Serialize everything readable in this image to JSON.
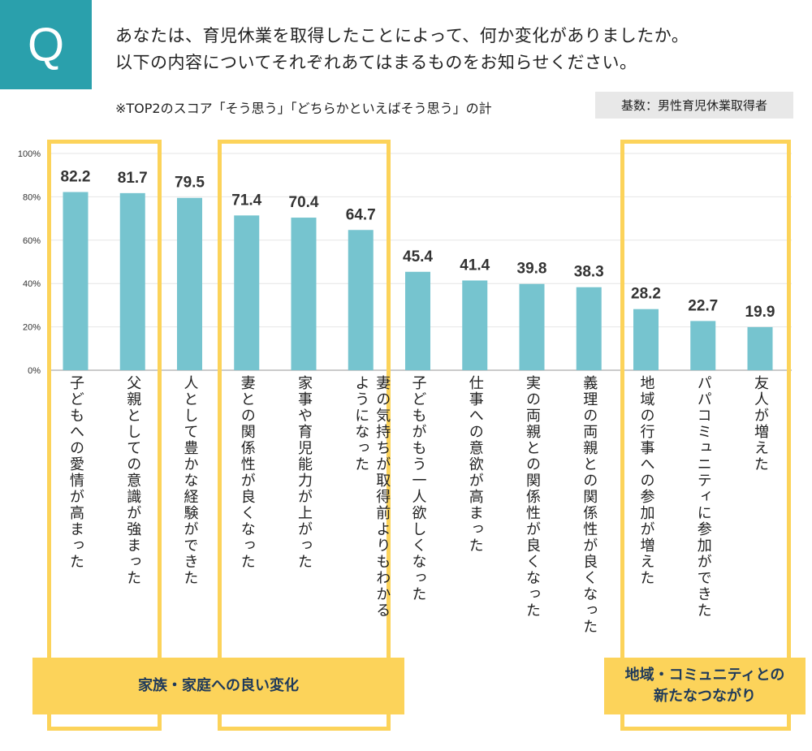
{
  "header": {
    "q_icon": "Q",
    "question_line1": "あなたは、育児休業を取得したことによって、何か変化がありましたか。",
    "question_line2": "以下の内容についてそれぞれあてはまるものをお知らせください。",
    "note": "※TOP2のスコア「そう思う」「どちらかといえばそう思う」の計",
    "base": "基数：男性育児休業取得者"
  },
  "groups": {
    "family": "家族・家庭への良い変化",
    "community": "地域・コミュニティとの\n新たなつながり"
  },
  "colors": {
    "bar": "#76c4cf",
    "accent": "#fcd35a",
    "q_box": "#2aa0ac",
    "banner_text": "#1f3a5a"
  },
  "chart_data": {
    "type": "bar",
    "categories": [
      "子どもへの愛情が高まった",
      "父親としての意識が強まった",
      "人として豊かな経験ができた",
      "妻との関係性が良くなった",
      "家事や育児能力が上がった",
      "妻の気持ちが取得前よりもわかる\nようになった",
      "子どもがもう一人欲しくなった",
      "仕事への意欲が高まった",
      "実の両親との関係性が良くなった",
      "義理の両親との関係性が良くなった",
      "地域の行事への参加が増えた",
      "パパコミュニティに参加ができた",
      "友人が増えた"
    ],
    "values": [
      82.2,
      81.7,
      79.5,
      71.4,
      70.4,
      64.7,
      45.4,
      41.4,
      39.8,
      38.3,
      28.2,
      22.7,
      19.9
    ],
    "yticks": [
      "0%",
      "20%",
      "40%",
      "60%",
      "80%",
      "100%"
    ],
    "ylim": [
      0,
      100
    ],
    "grid": true
  }
}
